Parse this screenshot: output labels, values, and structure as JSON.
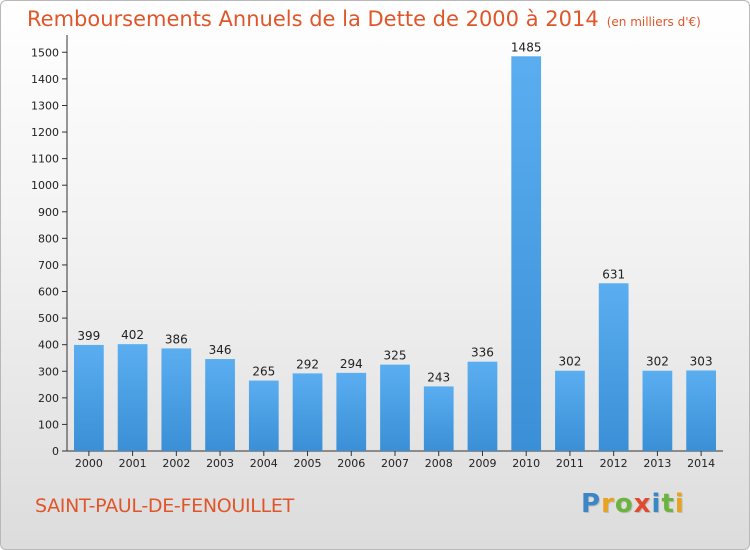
{
  "chart_data": {
    "type": "bar",
    "title": "Remboursements Annuels de la Dette de 2000 à 2014",
    "subtitle": "(en milliers d'€)",
    "categories": [
      "2000",
      "2001",
      "2002",
      "2003",
      "2004",
      "2005",
      "2006",
      "2007",
      "2008",
      "2009",
      "2010",
      "2011",
      "2012",
      "2013",
      "2014"
    ],
    "values": [
      399,
      402,
      386,
      346,
      265,
      292,
      294,
      325,
      243,
      336,
      1485,
      302,
      631,
      302,
      303
    ],
    "yticks": [
      0,
      100,
      200,
      300,
      400,
      500,
      600,
      700,
      800,
      900,
      1000,
      1100,
      1200,
      1300,
      1400,
      1500
    ],
    "ylim": [
      0,
      1550
    ],
    "grid": false,
    "bar_color": "#3a8fd6"
  },
  "commune": "SAINT-PAUL-DE-FENOUILLET",
  "logo": {
    "letters": [
      "P",
      "r",
      "o",
      "x",
      "i",
      "t",
      "i"
    ],
    "colors": [
      "#3d86c6",
      "#e8a21e",
      "#6cb33f",
      "#e04a2f",
      "#3d86c6",
      "#6cb33f",
      "#e8a21e"
    ]
  }
}
